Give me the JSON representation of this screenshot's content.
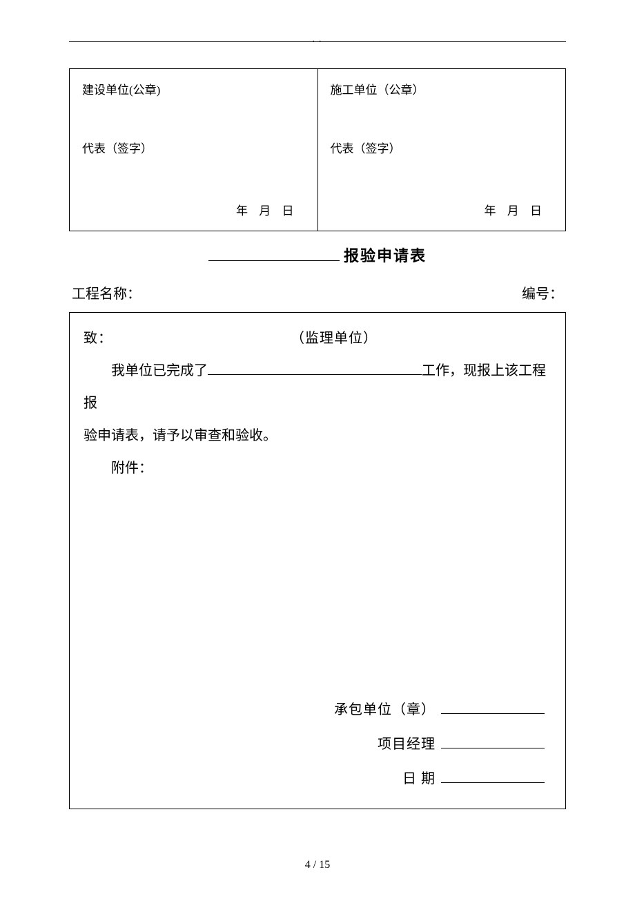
{
  "header": {
    "dots": ".   ."
  },
  "topTable": {
    "left": {
      "seal": "建设单位(公章)",
      "sign": "代表（签字）",
      "date": "年  月  日"
    },
    "right": {
      "seal": "施工单位（公章）",
      "sign": "代表（签字）",
      "date": "年  月  日"
    }
  },
  "formTitle": "报验申请表",
  "meta": {
    "projectLabel": "工程名称：",
    "numberLabel": "编号："
  },
  "body": {
    "toPrefix": "致：",
    "toSuffix": "（监理单位）",
    "para1a": "我单位已完成了",
    "para1b": "工作，现报上该工程报",
    "para2": "验申请表，请予以审查和验收。",
    "attach": "附件："
  },
  "sig": {
    "contractor": "承包单位（章）",
    "pm": "项目经理",
    "date": "日    期"
  },
  "pager": {
    "text": "4 / 15"
  }
}
